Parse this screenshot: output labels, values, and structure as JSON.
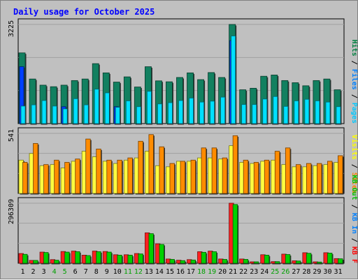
{
  "chart_data": {
    "type": "bar",
    "title": "Daily usage for October 2025",
    "categories": [
      "1",
      "2",
      "3",
      "4",
      "5",
      "6",
      "7",
      "8",
      "9",
      "10",
      "11",
      "12",
      "13",
      "14",
      "15",
      "16",
      "17",
      "18",
      "19",
      "20",
      "21",
      "22",
      "23",
      "24",
      "25",
      "26",
      "27",
      "28",
      "29",
      "30",
      "31"
    ],
    "weekend_days": [
      "4",
      "5",
      "11",
      "12",
      "18",
      "19",
      "25",
      "26"
    ],
    "panels": [
      {
        "id": "hits",
        "max_label": "3225",
        "ylim": [
          0,
          3225
        ],
        "labels": [
          {
            "text": "Pages",
            "color": "#00c8ff"
          },
          {
            "text": "Files",
            "color": "#0080ff"
          },
          {
            "text": "Hits",
            "color": "#008040"
          }
        ],
        "series": [
          {
            "name": "Hits",
            "color": "#128060",
            "values": [
              2300,
              1450,
              1250,
              1200,
              1250,
              1400,
              1450,
              1950,
              1650,
              1350,
              1520,
              1190,
              1850,
              1390,
              1360,
              1500,
              1650,
              1430,
              1660,
              1500,
              3225,
              1100,
              1150,
              1540,
              1580,
              1400,
              1330,
              1230,
              1400,
              1450,
              1100
            ]
          },
          {
            "name": "Files",
            "color": "#0040ff",
            "values": [
              1850,
              0,
              0,
              0,
              550,
              0,
              0,
              0,
              0,
              550,
              0,
              0,
              0,
              0,
              0,
              0,
              0,
              0,
              0,
              0,
              2700,
              0,
              0,
              0,
              0,
              0,
              0,
              0,
              0,
              0,
              0
            ]
          },
          {
            "name": "Pages",
            "color": "#00e0ff",
            "values": [
              570,
              610,
              750,
              570,
              480,
              810,
              610,
              1120,
              1000,
              530,
              740,
              550,
              1050,
              640,
              680,
              750,
              830,
              700,
              730,
              860,
              2850,
              620,
              620,
              800,
              880,
              560,
              740,
              790,
              740,
              700,
              550
            ]
          }
        ]
      },
      {
        "id": "visits",
        "max_label": "541",
        "ylim": [
          0,
          541
        ],
        "labels": [
          {
            "text": "Sites",
            "color": "#ff8000"
          },
          {
            "text": "Visits",
            "color": "#ffff00"
          }
        ],
        "series": [
          {
            "name": "Visits",
            "color": "#ffff40",
            "values": [
              300,
              360,
              250,
              260,
              230,
              290,
              380,
              330,
              290,
              270,
              300,
              320,
              380,
              250,
              240,
              290,
              290,
              320,
              320,
              310,
              430,
              280,
              270,
              290,
              300,
              260,
              240,
              240,
              250,
              260,
              280
            ]
          },
          {
            "name": "Sites",
            "color": "#ff8c00",
            "values": [
              280,
              450,
              260,
              300,
              280,
              310,
              490,
              400,
              300,
              300,
              320,
              470,
              530,
              420,
              270,
              290,
              300,
              410,
              410,
              320,
              520,
              300,
              280,
              300,
              380,
              410,
              260,
              270,
              270,
              290,
              340
            ]
          }
        ]
      },
      {
        "id": "kbytes",
        "max_label": "296309",
        "ylim": [
          0,
          296309
        ],
        "labels": [
          {
            "text": "KB F",
            "color": "#ff0000"
          },
          {
            "text": "KB In",
            "color": "#0080ff"
          },
          {
            "text": "KB Out",
            "color": "#00c000"
          }
        ],
        "series": [
          {
            "name": "KB F",
            "color": "#ff2020",
            "values": [
              48000,
              14000,
              55000,
              18000,
              58000,
              60000,
              40000,
              60000,
              58000,
              42000,
              42000,
              48000,
              150000,
              96000,
              21000,
              15000,
              18000,
              57000,
              60000,
              21000,
              296309,
              21000,
              7000,
              42000,
              8000,
              45000,
              12000,
              52000,
              7000,
              52000,
              23000
            ]
          },
          {
            "name": "KB Out",
            "color": "#00d000",
            "values": [
              44000,
              14000,
              53000,
              15000,
              55000,
              57000,
              38000,
              57000,
              55000,
              40000,
              40000,
              46000,
              146000,
              93000,
              19000,
              13000,
              16000,
              54000,
              57000,
              19000,
              290000,
              19000,
              7000,
              40000,
              8000,
              43000,
              11000,
              49000,
              6000,
              50000,
              22000
            ]
          }
        ]
      }
    ]
  }
}
